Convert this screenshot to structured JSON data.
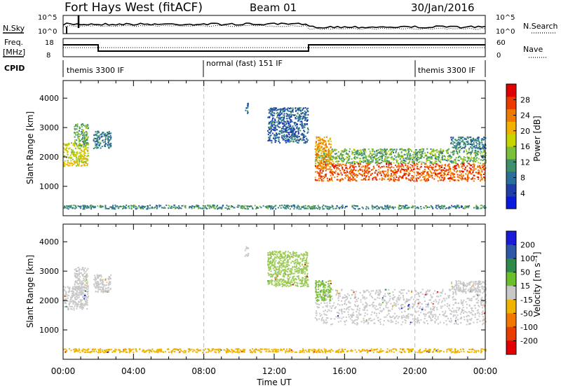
{
  "header": {
    "station": "Fort Hays West (fitACF)",
    "beam": "Beam 01",
    "date": "30/Jan/2016"
  },
  "status_panels": {
    "nsky_label": "N.Sky",
    "nsky_ticks": [
      "10^5",
      "10^0"
    ],
    "nsearch_label": "N.Search",
    "nsearch_ticks": [
      "10^5",
      "10^0"
    ],
    "freq_label": "Freq.",
    "freq_unit": "[MHz]",
    "freq_ticks": [
      "18",
      "8"
    ],
    "nave_label": "Nave",
    "nave_ticks": [
      "60",
      "0"
    ],
    "cpid_label": "CPID",
    "cpid_segments": [
      {
        "label": "themis 3300 IF",
        "start_h": 0,
        "end_h": 8
      },
      {
        "label": "normal (fast) 151 IF",
        "start_h": 8,
        "end_h": 20
      },
      {
        "label": "themis 3300 IF",
        "start_h": 20,
        "end_h": 24
      }
    ]
  },
  "chart_data": [
    {
      "type": "heatmap",
      "name": "power",
      "xlabel": "",
      "ylabel": "Slant Range [km]",
      "x_range_hours": [
        0,
        24
      ],
      "ylim": [
        0,
        4600
      ],
      "yticks": [
        1000,
        2000,
        3000,
        4000
      ],
      "colorbar": {
        "label": "Power [dB]",
        "ticks": [
          4,
          8,
          12,
          16,
          20,
          24,
          28
        ],
        "range": [
          0,
          32
        ],
        "colors": [
          "#0a1adc",
          "#1f3ea8",
          "#2a6f9a",
          "#3e8f6a",
          "#7bbf3a",
          "#c8d400",
          "#f2b000",
          "#f07a00",
          "#ea3a00",
          "#e00000"
        ]
      },
      "regions": [
        {
          "h0": 0.0,
          "h1": 1.4,
          "r0": 1700,
          "r1": 2500,
          "level": 18
        },
        {
          "h0": 0.6,
          "h1": 1.4,
          "r0": 2400,
          "r1": 3150,
          "level": 13
        },
        {
          "h0": 1.7,
          "h1": 2.7,
          "r0": 2300,
          "r1": 2900,
          "level": 9
        },
        {
          "h0": 10.3,
          "h1": 10.5,
          "r0": 3500,
          "r1": 3850,
          "level": 7
        },
        {
          "h0": 11.6,
          "h1": 13.9,
          "r0": 2500,
          "r1": 3700,
          "level": 7
        },
        {
          "h0": 14.3,
          "h1": 24.0,
          "r0": 1800,
          "r1": 2300,
          "level": 13
        },
        {
          "h0": 14.3,
          "h1": 24.0,
          "r0": 1200,
          "r1": 1800,
          "level": 26
        },
        {
          "h0": 14.3,
          "h1": 15.2,
          "r0": 1600,
          "r1": 2700,
          "level": 22
        },
        {
          "h0": 22.0,
          "h1": 24.0,
          "r0": 2300,
          "r1": 2700,
          "level": 9
        },
        {
          "h0": 0.0,
          "h1": 24.0,
          "r0": 250,
          "r1": 380,
          "level": 10
        }
      ]
    },
    {
      "type": "heatmap",
      "name": "velocity",
      "xlabel": "Time UT",
      "ylabel": "Slant Range [km]",
      "x_range_hours": [
        0,
        24
      ],
      "xticks": [
        "00:00",
        "04:00",
        "08:00",
        "12:00",
        "16:00",
        "20:00",
        "00:00"
      ],
      "ylim": [
        0,
        4600
      ],
      "yticks": [
        1000,
        2000,
        3000,
        4000
      ],
      "colorbar": {
        "label": "Velocity [m s⁻¹]",
        "ticks": [
          "200",
          "100",
          "50",
          "15",
          "-15",
          "-50",
          "-100",
          "-200"
        ],
        "colors": [
          "#1a1ad8",
          "#2f57a8",
          "#2d8a4a",
          "#6bbf2a",
          "#c8c8c8",
          "#f0b400",
          "#f07800",
          "#e83c00",
          "#e00000"
        ]
      },
      "regions": [
        {
          "h0": 0.0,
          "h1": 1.4,
          "r0": 1700,
          "r1": 2500,
          "color": "#c8c8c8"
        },
        {
          "h0": 0.6,
          "h1": 1.4,
          "r0": 2400,
          "r1": 3150,
          "color": "#c8c8c8"
        },
        {
          "h0": 1.7,
          "h1": 2.7,
          "r0": 2300,
          "r1": 2900,
          "color": "#c8c8c8"
        },
        {
          "h0": 10.3,
          "h1": 10.5,
          "r0": 3500,
          "r1": 3850,
          "color": "#c8c8c8"
        },
        {
          "h0": 11.6,
          "h1": 13.9,
          "r0": 2500,
          "r1": 3700,
          "color": "#9ccb5a"
        },
        {
          "h0": 14.3,
          "h1": 24.0,
          "r0": 1200,
          "r1": 2400,
          "color": "#c8c8c8"
        },
        {
          "h0": 14.3,
          "h1": 15.2,
          "r0": 2000,
          "r1": 2700,
          "color": "#7bbf3a"
        },
        {
          "h0": 22.0,
          "h1": 24.0,
          "r0": 2300,
          "r1": 2700,
          "color": "#c8c8c8"
        },
        {
          "h0": 0.0,
          "h1": 24.0,
          "r0": 250,
          "r1": 380,
          "color": "#f0b400"
        }
      ]
    }
  ]
}
